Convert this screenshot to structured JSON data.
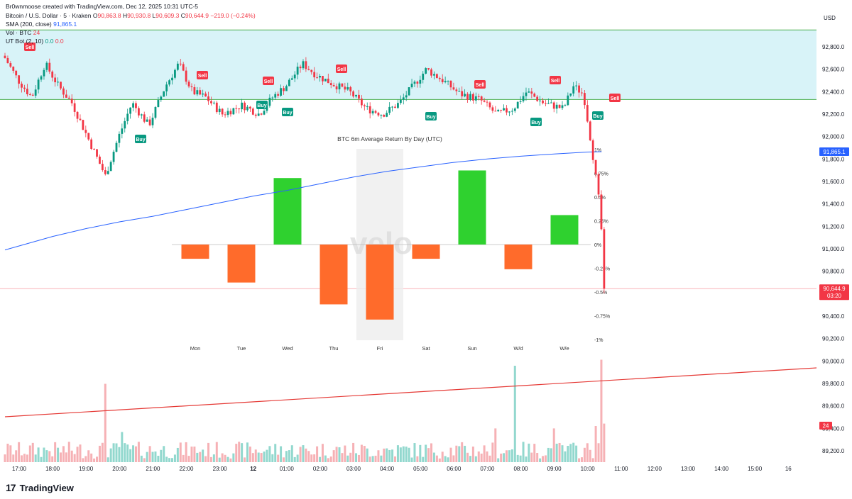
{
  "header": {
    "creator": "Br0wnmoose created with TradingView.com, Dec 12, 2025 10:31 UTC-5",
    "symbol": "Bitcoin / U.S. Dollar · 5 · Kraken",
    "o_label": "O",
    "o": "90,863.8",
    "h_label": "H",
    "h": "90,930.8",
    "l_label": "L",
    "l": "90,609.3",
    "c_label": "C",
    "c": "90,644.9",
    "change": "−219.0 (−0.24%)",
    "sma_label": "SMA (200, close)",
    "sma_value": "91,865.1",
    "vol_label": "Vol · BTC",
    "vol_value": "24",
    "ut_label": "UT Bot (2, 10)",
    "ut_v1": "0.0",
    "ut_v2": "0.0",
    "currency": "USD"
  },
  "logo": {
    "text": "TradingView",
    "icon": "tradingview-logo-icon"
  },
  "colors": {
    "up": "#089981",
    "down": "#f23645",
    "sma": "#2962ff",
    "zone": "#d8f3f8",
    "zone_line": "#4caf50",
    "bar_green": "#2fd12f",
    "bar_orange": "#ff6b2b",
    "vol_line": "#e53935"
  },
  "price_axis": {
    "ticks": [
      "92,800.0",
      "92,600.0",
      "92,400.0",
      "92,200.0",
      "92,000.0",
      "91,800.0",
      "91,600.0",
      "91,400.0",
      "91,200.0",
      "91,000.0",
      "90,800.0",
      "90,600.0",
      "90,400.0",
      "90,200.0",
      "90,000.0",
      "89,800.0",
      "89,600.0",
      "89,400.0",
      "89,200.0"
    ],
    "sma_badge": "91,865.1",
    "price_badge": "90,644.9",
    "price_countdown": "03:20",
    "vol_badge": "24"
  },
  "time_axis": {
    "labels": [
      "17:00",
      "18:00",
      "19:00",
      "20:00",
      "21:00",
      "22:00",
      "23:00",
      "12",
      "01:00",
      "02:00",
      "03:00",
      "04:00",
      "05:00",
      "06:00",
      "07:00",
      "08:00",
      "09:00",
      "10:00",
      "11:00",
      "12:00",
      "13:00",
      "14:00",
      "15:00",
      "16"
    ]
  },
  "signals": [
    {
      "label": "Sell",
      "type": "sell"
    },
    {
      "label": "Sell",
      "type": "sell"
    },
    {
      "label": "Sell",
      "type": "sell"
    },
    {
      "label": "Sell",
      "type": "sell"
    },
    {
      "label": "Sell",
      "type": "sell"
    },
    {
      "label": "Sell",
      "type": "sell"
    },
    {
      "label": "Sell",
      "type": "sell"
    },
    {
      "label": "Buy",
      "type": "buy"
    },
    {
      "label": "Buy",
      "type": "buy"
    },
    {
      "label": "Buy",
      "type": "buy"
    },
    {
      "label": "Buy",
      "type": "buy"
    },
    {
      "label": "Buy",
      "type": "buy"
    },
    {
      "label": "Buy",
      "type": "buy"
    }
  ],
  "chart_data": [
    {
      "type": "bar",
      "title": "BTC 6m Average Return By Day (UTC)",
      "watermark": "velo",
      "categories": [
        "Mon",
        "Tue",
        "Wed",
        "Thu",
        "Fri",
        "Sat",
        "Sun",
        "W/d",
        "W/e"
      ],
      "values": [
        -0.15,
        -0.4,
        0.7,
        -0.63,
        -0.79,
        -0.15,
        0.78,
        -0.26,
        0.31
      ],
      "ylim": [
        -1,
        1
      ],
      "yticks": [
        "1%",
        "0.75%",
        "0.5%",
        "0.25%",
        "0%",
        "-0.25%",
        "-0.5%",
        "-0.75%",
        "-1%"
      ],
      "highlight_category": "Fri"
    },
    {
      "type": "line",
      "series_name": "SMA (200, close)",
      "x": [
        "17:00",
        "18:00",
        "19:00",
        "20:00",
        "21:00",
        "22:00",
        "23:00",
        "00:00",
        "01:00",
        "02:00",
        "03:00",
        "04:00",
        "05:00",
        "06:00",
        "07:00",
        "08:00",
        "09:00",
        "10:00",
        "10:25"
      ],
      "y": [
        90990,
        91110,
        91180,
        91240,
        91290,
        91350,
        91410,
        91470,
        91520,
        91580,
        91640,
        91690,
        91730,
        91770,
        91800,
        91825,
        91845,
        91862,
        91865
      ],
      "zone": [
        92330,
        92950
      ]
    }
  ]
}
